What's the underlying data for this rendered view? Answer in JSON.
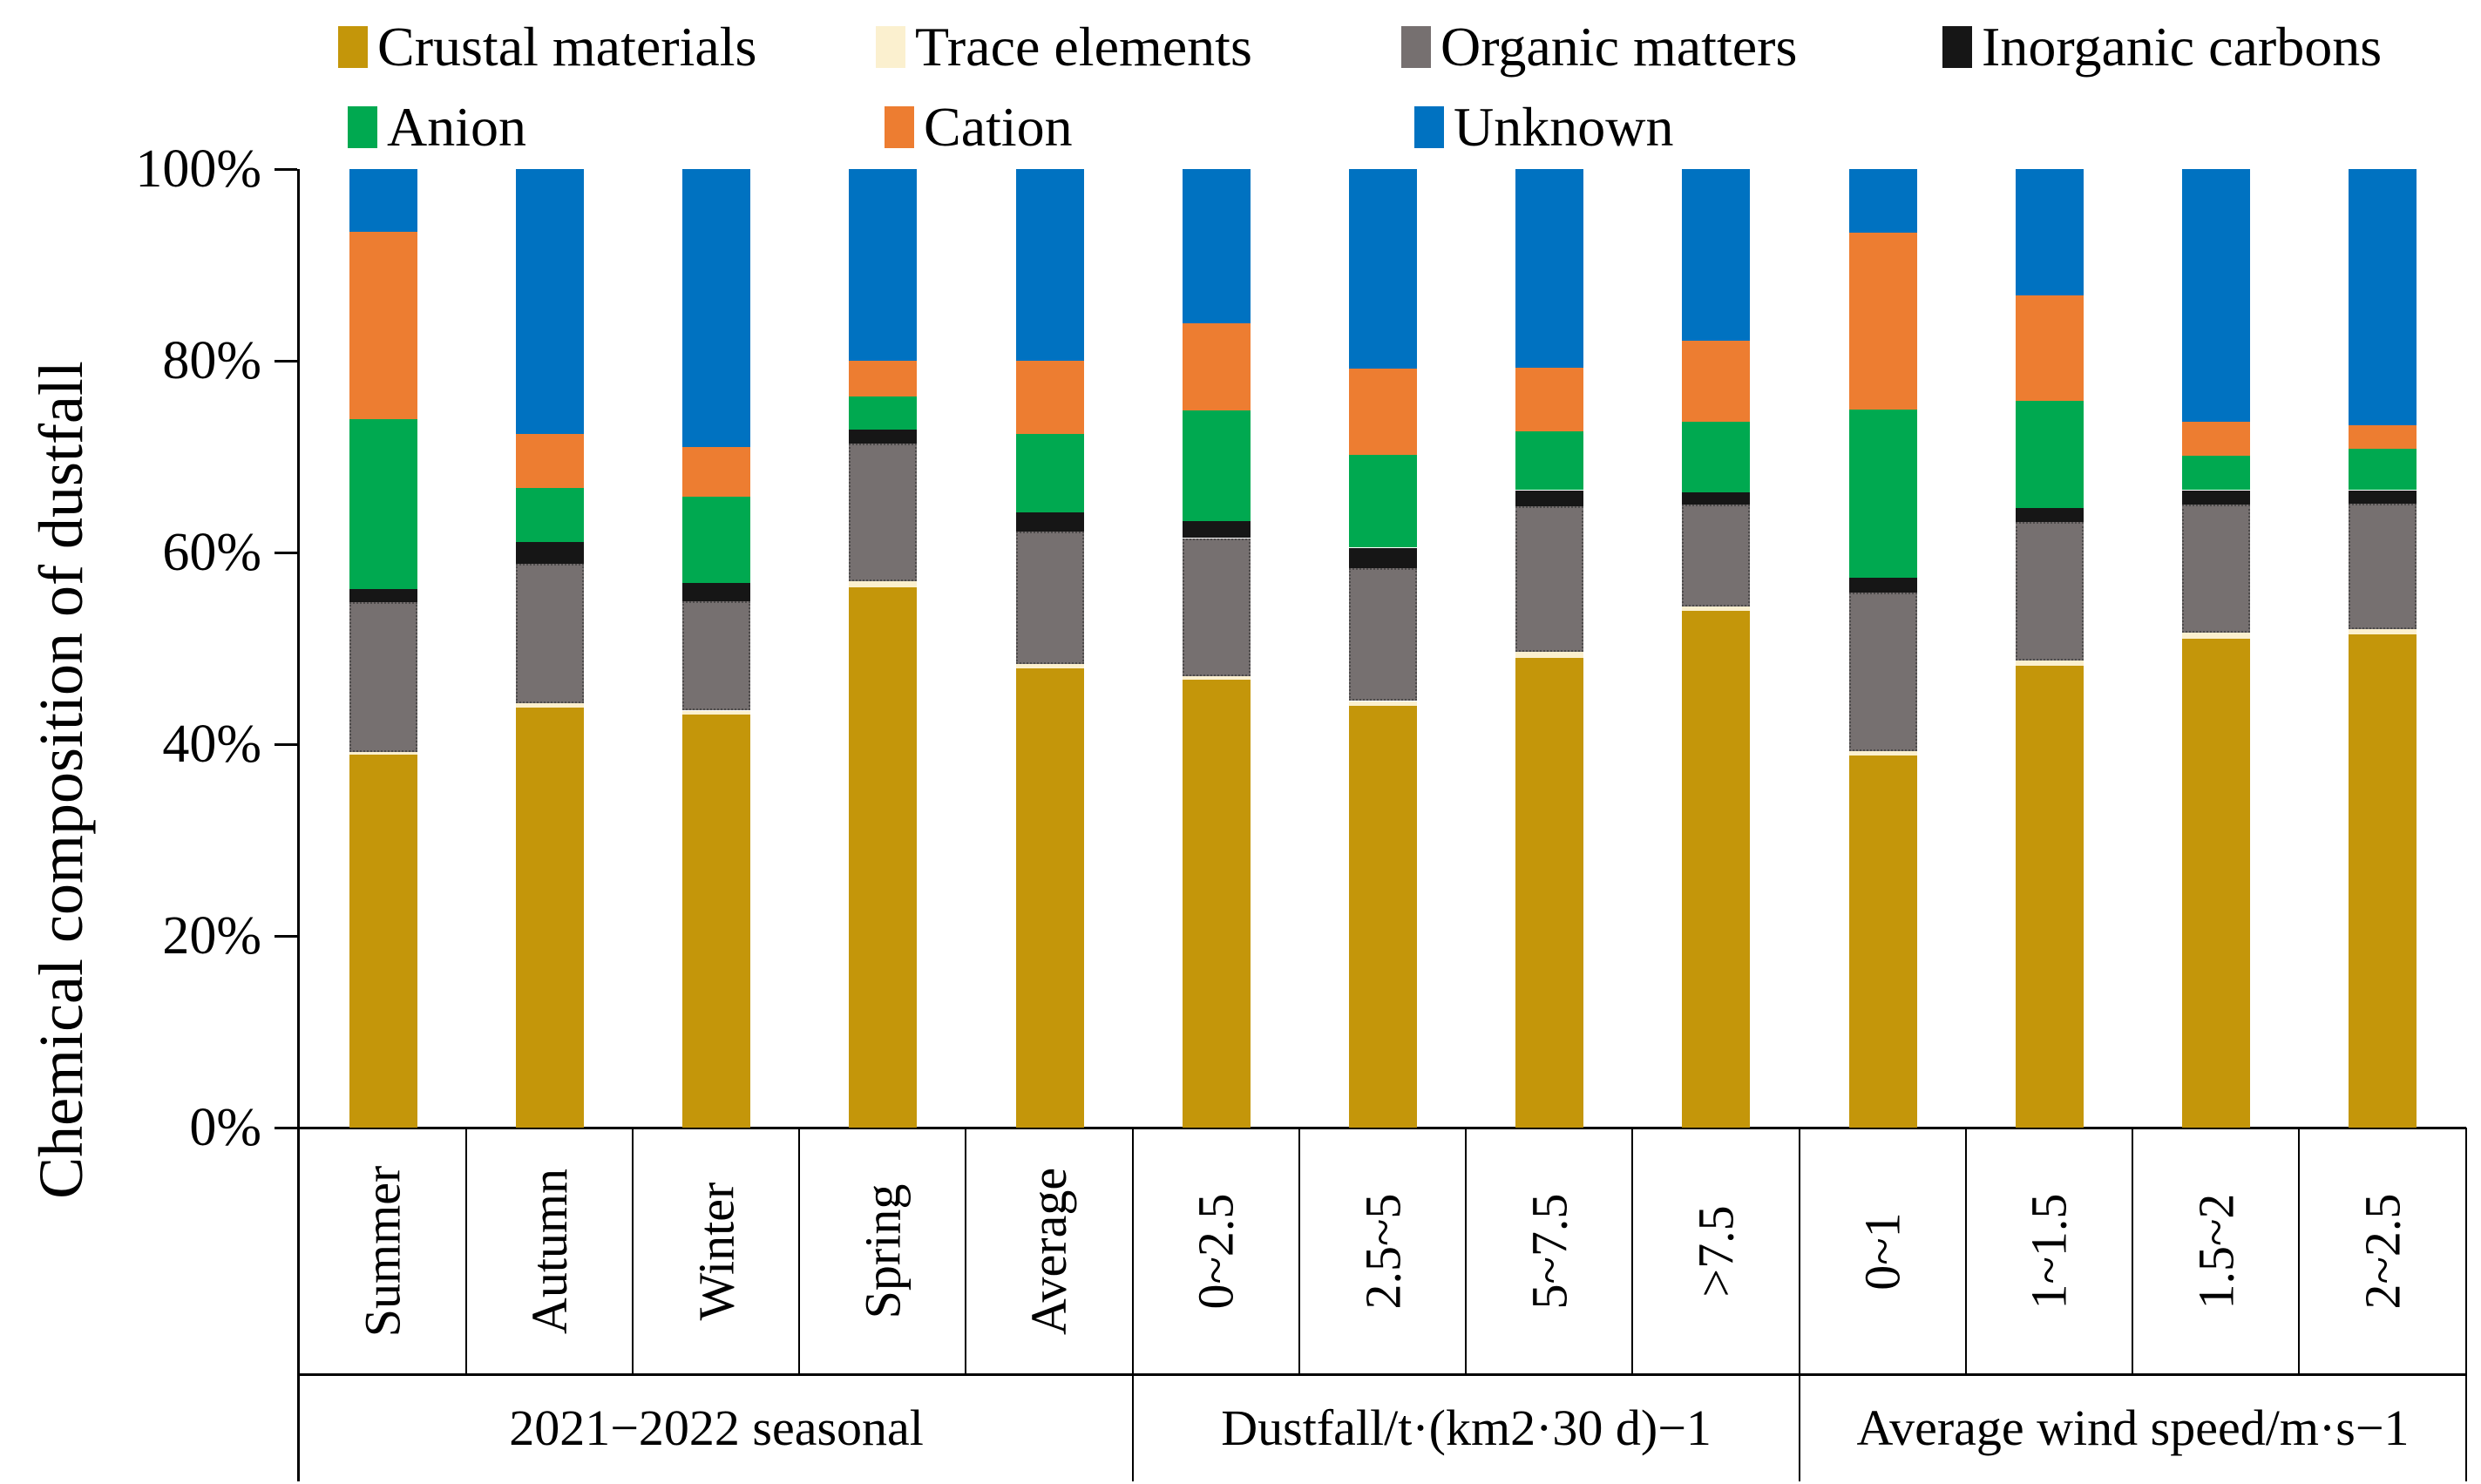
{
  "chart_data": {
    "type": "bar",
    "variant": "100%-stacked-column",
    "title": "",
    "ylabel": "Chemical composition of dustfall",
    "xlabel": "",
    "ylim": [
      0,
      100
    ],
    "y_ticks": [
      {
        "value": 0,
        "label": "0%"
      },
      {
        "value": 20,
        "label": "20%"
      },
      {
        "value": 40,
        "label": "40%"
      },
      {
        "value": 60,
        "label": "60%"
      },
      {
        "value": 80,
        "label": "80%"
      },
      {
        "value": 100,
        "label": "100%"
      }
    ],
    "grid": "off",
    "legend_position": "top",
    "categories": [
      "Summer",
      "Autumn",
      "Winter",
      "Spring",
      "Average",
      "0~2.5",
      "2.5~5",
      "5~7.5",
      ">7.5",
      "0~1",
      "1~1.5",
      "1.5~2",
      "2~2.5"
    ],
    "category_groups": [
      {
        "label": "2021−2022 seasonal",
        "span": 5
      },
      {
        "label": "Dustfall/t·(km2·30 d)−1",
        "span": 4
      },
      {
        "label": "Average wind speed/m·s−1",
        "span": 4
      }
    ],
    "series": [
      {
        "name": "Crustal materials",
        "color": "#C4960A",
        "values": [
          38.9,
          43.8,
          43.1,
          56.4,
          47.9,
          46.7,
          44.0,
          49.0,
          53.9,
          38.8,
          48.2,
          51.0,
          51.5
        ]
      },
      {
        "name": "Trace elements",
        "color": "#FBF0CF",
        "values": [
          0.3,
          0.5,
          0.4,
          0.6,
          0.5,
          0.4,
          0.5,
          0.6,
          0.5,
          0.5,
          0.5,
          0.6,
          0.5
        ]
      },
      {
        "name": "Organic matters",
        "color": "#767070",
        "values": [
          15.6,
          14.5,
          11.4,
          14.4,
          13.8,
          14.4,
          13.9,
          15.2,
          10.6,
          16.5,
          14.5,
          13.4,
          13.1
        ]
      },
      {
        "name": "Inorganic carbons",
        "color": "#161616",
        "values": [
          1.4,
          2.3,
          1.9,
          1.4,
          2.0,
          1.8,
          2.1,
          1.7,
          1.3,
          1.6,
          1.4,
          1.5,
          1.4
        ]
      },
      {
        "name": "Anion",
        "color": "#00A950",
        "values": [
          17.7,
          5.6,
          9.0,
          3.5,
          8.2,
          11.5,
          9.7,
          6.1,
          7.3,
          17.5,
          11.2,
          3.6,
          4.3
        ]
      },
      {
        "name": "Cation",
        "color": "#ED7D31",
        "values": [
          19.6,
          5.7,
          5.2,
          3.7,
          7.6,
          9.1,
          9.0,
          6.7,
          8.5,
          18.5,
          11.0,
          3.5,
          2.5
        ]
      },
      {
        "name": "Unknown",
        "color": "#0072C1",
        "values": [
          6.5,
          27.6,
          29.0,
          20.0,
          20.0,
          16.1,
          20.8,
          20.7,
          17.9,
          6.6,
          13.2,
          26.4,
          26.7
        ]
      }
    ],
    "legend_rows": [
      [
        0,
        1,
        2,
        3
      ],
      [
        4,
        5,
        6
      ]
    ]
  }
}
